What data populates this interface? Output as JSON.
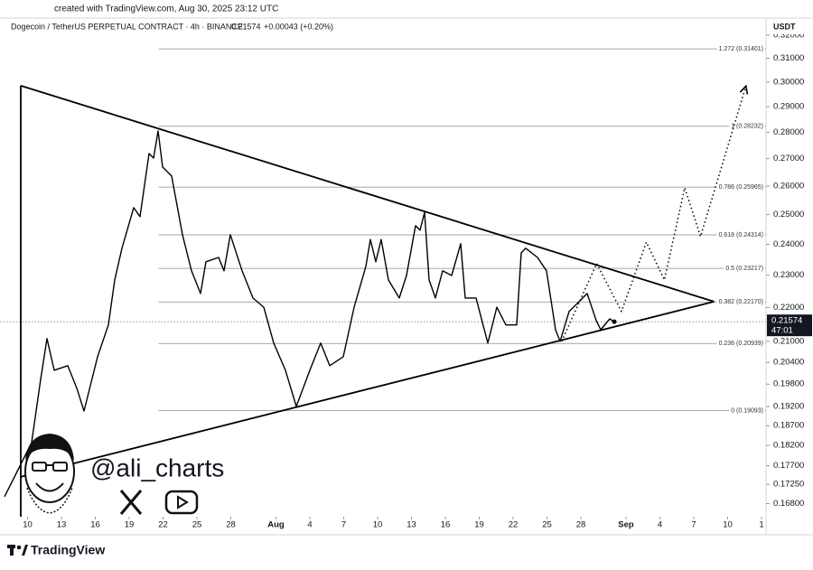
{
  "chart_data": {
    "type": "line",
    "created_note": "created with TradingView.com, Aug 30, 2025 23:12 UTC",
    "symbol": "Dogecoin / TetherUS PERPETUAL CONTRACT · 4h · BINANCE",
    "header_change": "+0.00043 (+0.20%)",
    "currency": "USDT",
    "last_price": 0.21574,
    "countdown": "47:01",
    "watermark": "@ali_charts",
    "brand": "TradingView",
    "log_scale": true,
    "xlim": [
      7.56,
      75.4
    ],
    "ylim": [
      0.1654,
      0.3268
    ],
    "xticks": [
      {
        "value": 10,
        "label": "10"
      },
      {
        "value": 13,
        "label": "13"
      },
      {
        "value": 16,
        "label": "16"
      },
      {
        "value": 19,
        "label": "19"
      },
      {
        "value": 22,
        "label": "22"
      },
      {
        "value": 25,
        "label": "25"
      },
      {
        "value": 28,
        "label": "28"
      },
      {
        "value": 32,
        "label": "Aug"
      },
      {
        "value": 35,
        "label": "4"
      },
      {
        "value": 38,
        "label": "7"
      },
      {
        "value": 41,
        "label": "10"
      },
      {
        "value": 44,
        "label": "13"
      },
      {
        "value": 47,
        "label": "16"
      },
      {
        "value": 50,
        "label": "19"
      },
      {
        "value": 53,
        "label": "22"
      },
      {
        "value": 56,
        "label": "25"
      },
      {
        "value": 59,
        "label": "28"
      },
      {
        "value": 63,
        "label": "Sep"
      },
      {
        "value": 66,
        "label": "4"
      },
      {
        "value": 69,
        "label": "7"
      },
      {
        "value": 72,
        "label": "10"
      },
      {
        "value": 75,
        "label": "1"
      }
    ],
    "yticks": [
      {
        "value": 0.32,
        "label": "0.32000"
      },
      {
        "value": 0.31,
        "label": "0.31000"
      },
      {
        "value": 0.3,
        "label": "0.30000"
      },
      {
        "value": 0.29,
        "label": "0.29000"
      },
      {
        "value": 0.28,
        "label": "0.28000"
      },
      {
        "value": 0.27,
        "label": "0.27000"
      },
      {
        "value": 0.26,
        "label": "0.26000"
      },
      {
        "value": 0.25,
        "label": "0.25000"
      },
      {
        "value": 0.24,
        "label": "0.24000"
      },
      {
        "value": 0.23,
        "label": "0.23000"
      },
      {
        "value": 0.22,
        "label": "0.22000"
      },
      {
        "value": 0.21,
        "label": "0.21000"
      },
      {
        "value": 0.204,
        "label": "0.20400"
      },
      {
        "value": 0.198,
        "label": "0.19800"
      },
      {
        "value": 0.192,
        "label": "0.19200"
      },
      {
        "value": 0.187,
        "label": "0.18700"
      },
      {
        "value": 0.182,
        "label": "0.18200"
      },
      {
        "value": 0.177,
        "label": "0.17700"
      },
      {
        "value": 0.1725,
        "label": "0.17250"
      },
      {
        "value": 0.168,
        "label": "0.16800"
      }
    ],
    "fib_from": 21.6,
    "fib_levels": [
      {
        "value": 0.31401,
        "label": "1.272 (0.31401)"
      },
      {
        "value": 0.28232,
        "label": "1 (0.28232)"
      },
      {
        "value": 0.25965,
        "label": "0.786 (0.25965)"
      },
      {
        "value": 0.24314,
        "label": "0.618 (0.24314)"
      },
      {
        "value": 0.23217,
        "label": "0.5 (0.23217)"
      },
      {
        "value": 0.2217,
        "label": "0.382 (0.22170)"
      },
      {
        "value": 0.20939,
        "label": "0.236 (0.20939)"
      },
      {
        "value": 0.19093,
        "label": "0 (0.19093)"
      }
    ],
    "trendlines": [
      {
        "x": [
          9.4,
          70.8
        ],
        "y": [
          0.2985,
          0.2218
        ]
      },
      {
        "x": [
          9.4,
          70.8
        ],
        "y": [
          0.1743,
          0.2218
        ]
      }
    ],
    "series": [
      {
        "color": "#000000",
        "style": "solid",
        "x": [
          7.96,
          9.16,
          10.36,
          11.16,
          11.72,
          12.36,
          13.56,
          14.36,
          15.0,
          16.2,
          17.16,
          17.72,
          18.36,
          19.4,
          19.96,
          20.76,
          21.16,
          21.56,
          21.96,
          22.76,
          23.72,
          24.52,
          25.32,
          25.8,
          26.92,
          27.4,
          27.96,
          29.0,
          29.96,
          30.92,
          31.8,
          32.84,
          33.8,
          35.0,
          35.96,
          36.76,
          37.96,
          38.92,
          39.96,
          40.36,
          40.84,
          41.32,
          41.96,
          42.92,
          43.56,
          44.36,
          44.76,
          45.16,
          45.56,
          46.12,
          46.76,
          47.56,
          48.36,
          48.76,
          49.72,
          50.76,
          51.56,
          52.36,
          53.32,
          53.72,
          54.12,
          55.16,
          55.96,
          56.76,
          57.16,
          57.96,
          58.76,
          59.56,
          60.36,
          60.76,
          61.56,
          61.96
        ],
        "values": [
          0.1696,
          0.176,
          0.1827,
          0.1993,
          0.2108,
          0.2018,
          0.2031,
          0.1969,
          0.1908,
          0.2056,
          0.2148,
          0.2285,
          0.2387,
          0.2524,
          0.2493,
          0.2719,
          0.2702,
          0.2805,
          0.2669,
          0.2636,
          0.2432,
          0.2314,
          0.2243,
          0.2343,
          0.2357,
          0.2314,
          0.2432,
          0.2314,
          0.2229,
          0.2201,
          0.2095,
          0.2018,
          0.192,
          0.2018,
          0.2095,
          0.2031,
          0.2056,
          0.2201,
          0.2328,
          0.2416,
          0.2343,
          0.2416,
          0.2285,
          0.2229,
          0.2299,
          0.2462,
          0.2447,
          0.2508,
          0.2285,
          0.2229,
          0.2314,
          0.2299,
          0.2402,
          0.2229,
          0.2229,
          0.2095,
          0.2201,
          0.2148,
          0.2148,
          0.2372,
          0.2387,
          0.2357,
          0.2314,
          0.2134,
          0.21,
          0.2188,
          0.2215,
          0.2243,
          0.2161,
          0.2134,
          0.2166,
          0.21574
        ]
      },
      {
        "color": "#000000",
        "style": "dotted",
        "x": [
          57.3,
          60.4,
          62.6,
          64.8,
          66.4,
          68.2,
          69.6,
          73.6
        ],
        "values": [
          0.21,
          0.2337,
          0.2188,
          0.2407,
          0.2285,
          0.2594,
          0.2426,
          0.298
        ]
      }
    ]
  }
}
